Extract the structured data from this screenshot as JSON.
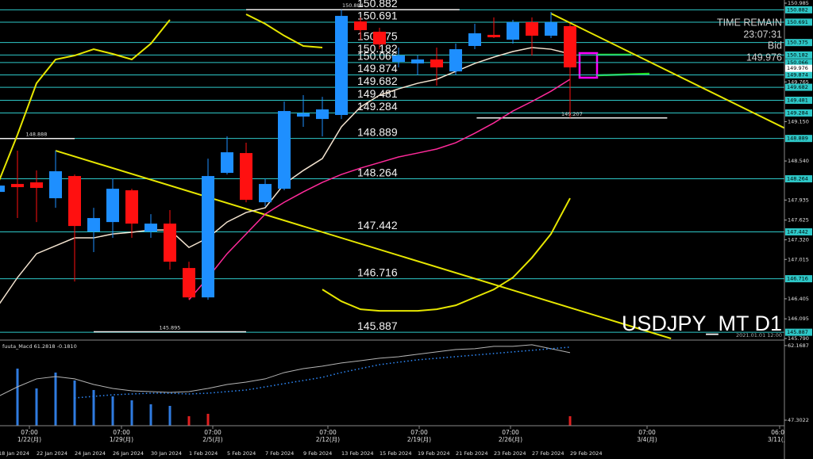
{
  "chart_data": {
    "type": "candlestick",
    "symbol": "USDJPY_MT D1",
    "timestamp": "2021.01.01 12:00",
    "info": {
      "time_remain_label": "TIME REMAIN",
      "time_remain": "23:07:31",
      "bid_label": "Bid",
      "bid": 149.976
    },
    "categories": [
      "18 Jan 2024",
      null,
      "22 Jan 2024",
      null,
      "24 Jan 2024",
      null,
      "26 Jan 2024",
      null,
      "30 Jan 2024",
      null,
      "1 Feb 2024",
      null,
      "5 Feb 2024",
      null,
      "7 Feb 2024",
      null,
      "9 Feb 2024",
      null,
      "13 Feb 2024",
      null,
      "15 Feb 2024",
      null,
      "19 Feb 2024",
      null,
      "21 Feb 2024",
      null,
      "23 Feb 2024",
      null,
      "27 Feb 2024",
      null,
      "29 Feb 2024"
    ],
    "open": [
      148.061,
      148.184,
      148.209,
      147.963,
      148.307,
      147.447,
      147.594,
      148.086,
      147.447,
      147.57,
      146.882,
      146.427,
      148.356,
      148.663,
      147.901,
      148.11,
      149.228,
      149.191,
      149.253,
      150.702,
      150.543,
      150.076,
      150.051,
      150.113,
      149.928,
      150.322,
      150.494,
      150.42,
      150.69,
      150.481,
      150.629
    ],
    "high": [
      148.209,
      148.7,
      148.393,
      148.7,
      148.331,
      147.815,
      148.27,
      148.11,
      147.717,
      147.779,
      146.98,
      148.577,
      148.921,
      148.823,
      148.27,
      149.462,
      149.56,
      149.535,
      150.884,
      150.764,
      150.604,
      150.297,
      150.174,
      150.297,
      150.358,
      150.666,
      150.764,
      150.727,
      150.764,
      150.85,
      150.666
    ],
    "low": [
      147.963,
      147.656,
      147.594,
      147.815,
      146.673,
      147.128,
      147.349,
      147.349,
      147.349,
      146.857,
      146.39,
      146.39,
      148.331,
      147.901,
      147.84,
      148.086,
      149.069,
      148.921,
      149.191,
      150.42,
      150.272,
      149.99,
      149.867,
      149.707,
      149.867,
      150.272,
      150.444,
      150.358,
      150.174,
      150.444,
      149.207
    ],
    "close": [
      148.159,
      148.135,
      148.123,
      148.381,
      147.533,
      147.656,
      148.11,
      147.57,
      147.57,
      146.98,
      146.427,
      148.307,
      148.675,
      147.938,
      148.184,
      149.314,
      149.277,
      149.339,
      150.788,
      150.567,
      150.346,
      150.174,
      150.113,
      149.99,
      150.272,
      150.518,
      150.457,
      150.69,
      150.481,
      150.69,
      149.99
    ],
    "bull_color": "#1e8fff",
    "bear_color": "#ff1010",
    "ylim": [
      145.79,
      150.985
    ],
    "yticks": [
      150.985,
      149.765,
      {
        "value": 149.15,
        "label": "149.150"
      },
      {
        "value": 148.54,
        "label": "148.540"
      },
      147.935,
      147.625,
      {
        "value": 147.32,
        "label": "147.320"
      },
      147.015,
      146.405,
      146.095,
      {
        "value": 145.79,
        "label": "145.790"
      }
    ],
    "levels": [
      150.882,
      150.691,
      150.375,
      150.182,
      150.066,
      149.874,
      149.682,
      149.481,
      149.284,
      148.889,
      148.264,
      147.442,
      146.716,
      145.887
    ],
    "level_color": "#2ec8c8",
    "marks": [
      {
        "value": 150.884,
        "x": [
          13,
          24.2
        ]
      },
      {
        "value": 149.207,
        "x": [
          25.1,
          35.1
        ]
      },
      {
        "value": 148.888,
        "x": [
          0,
          4
        ]
      },
      {
        "value": 145.895,
        "x": [
          5,
          13
        ]
      }
    ],
    "overlays": [
      {
        "color": "#f3e3cf",
        "width": 1.5,
        "values": [
          146.304,
          146.734,
          147.103,
          147.226,
          147.349,
          147.349,
          147.41,
          147.435,
          147.471,
          147.471,
          147.201,
          147.349,
          147.594,
          147.742,
          147.815,
          148.184,
          148.393,
          148.577,
          149.069,
          149.376,
          149.56,
          149.658,
          149.744,
          149.806,
          149.928,
          150.051,
          150.15,
          150.236,
          150.297,
          150.272,
          150.199
        ]
      },
      {
        "color": "#ff2a9a",
        "width": 1.5,
        "values": [
          null,
          null,
          null,
          null,
          null,
          null,
          null,
          null,
          null,
          null,
          146.39,
          146.734,
          147.103,
          147.41,
          147.717,
          147.901,
          148.061,
          148.209,
          148.331,
          148.43,
          148.516,
          148.602,
          148.663,
          148.725,
          148.823,
          148.97,
          149.13,
          149.314,
          149.462,
          149.621,
          149.806
        ]
      },
      {
        "color": "#e6e600",
        "width": 2,
        "values": [
          148.209,
          148.946,
          149.744,
          150.113,
          150.174,
          150.272,
          150.199,
          150.113,
          150.358,
          150.727,
          null,
          null,
          null,
          150.813,
          150.666,
          150.481,
          150.322,
          150.297,
          null,
          null,
          null,
          null,
          null,
          null,
          null,
          null,
          null,
          null,
          null,
          null,
          null
        ]
      },
      {
        "color": "#e6e600",
        "width": 2,
        "values": [
          null,
          null,
          null,
          null,
          null,
          null,
          null,
          null,
          null,
          null,
          null,
          null,
          null,
          null,
          null,
          null,
          null,
          146.55,
          146.366,
          146.243,
          146.218,
          146.218,
          146.218,
          146.243,
          146.304,
          146.427,
          146.55,
          146.734,
          147.042,
          147.41,
          147.963
        ]
      }
    ],
    "trendlines": [
      {
        "color": "#e6e600",
        "x": [
          3,
          35.3
        ],
        "y": [
          148.7,
          145.79
        ]
      },
      {
        "color": "#e6e600",
        "x": [
          29,
          42.4
        ],
        "y": [
          150.825,
          148.884
        ]
      }
    ],
    "week_labels": [
      {
        "time": "07:00",
        "date": "1/22(月)"
      },
      {
        "time": "07:00",
        "date": "1/29(月)"
      },
      {
        "time": "07:00",
        "date": "2/5(月)"
      },
      {
        "time": "07:00",
        "date": "2/12(月)"
      },
      {
        "time": "07:00",
        "date": "2/19(月)"
      },
      {
        "time": "07:00",
        "date": "2/26(月)"
      },
      {
        "time": "07:00",
        "date": "3/4(月)"
      },
      {
        "time": "06:00",
        "date": "3/11(月)"
      }
    ],
    "indicator": {
      "title": "fuuta_Macd 61.2818 -0.1810",
      "ylim": [
        46.2,
        63.1
      ],
      "yticks": [
        62.1687,
        47.3022
      ],
      "histogram": [
        56.79,
        57.58,
        53.63,
        56.79,
        55.21,
        53.31,
        52.05,
        51.26,
        50.47,
        50.15,
        48.09,
        48.57,
        null,
        null,
        null,
        null,
        null,
        null,
        null,
        null,
        null,
        null,
        null,
        null,
        null,
        null,
        null,
        null,
        null,
        null,
        48.09
      ],
      "histogram_colors": [
        "#2f7be0",
        "#2f7be0",
        "#2f7be0",
        "#2f7be0",
        "#2f7be0",
        "#2f7be0",
        "#2f7be0",
        "#2f7be0",
        "#2f7be0",
        "#2f7be0",
        "#e02020",
        "#e02020",
        null,
        null,
        null,
        null,
        null,
        null,
        null,
        null,
        null,
        null,
        null,
        null,
        null,
        null,
        null,
        null,
        null,
        null,
        "#e02020"
      ],
      "signal": [
        52.05,
        53.94,
        55.53,
        56.0,
        55.53,
        54.42,
        53.63,
        53.15,
        53.0,
        52.84,
        53.0,
        53.63,
        54.42,
        54.89,
        55.53,
        56.79,
        57.58,
        58.06,
        58.69,
        59.16,
        59.64,
        59.95,
        60.43,
        60.9,
        61.38,
        61.54,
        62.01,
        62.01,
        62.33,
        61.54,
        60.75
      ],
      "signal_color": "#b4b4b4",
      "dots": [
        null,
        null,
        null,
        null,
        51.73,
        52.05,
        52.36,
        52.52,
        52.68,
        52.68,
        52.52,
        52.68,
        53.0,
        53.31,
        53.94,
        54.58,
        55.21,
        55.84,
        56.79,
        57.58,
        58.37,
        58.85,
        59.32,
        59.64,
        59.95,
        60.27,
        60.59,
        60.9,
        61.22,
        61.54,
        61.85
      ],
      "dots_color": "#2f8cff"
    }
  }
}
